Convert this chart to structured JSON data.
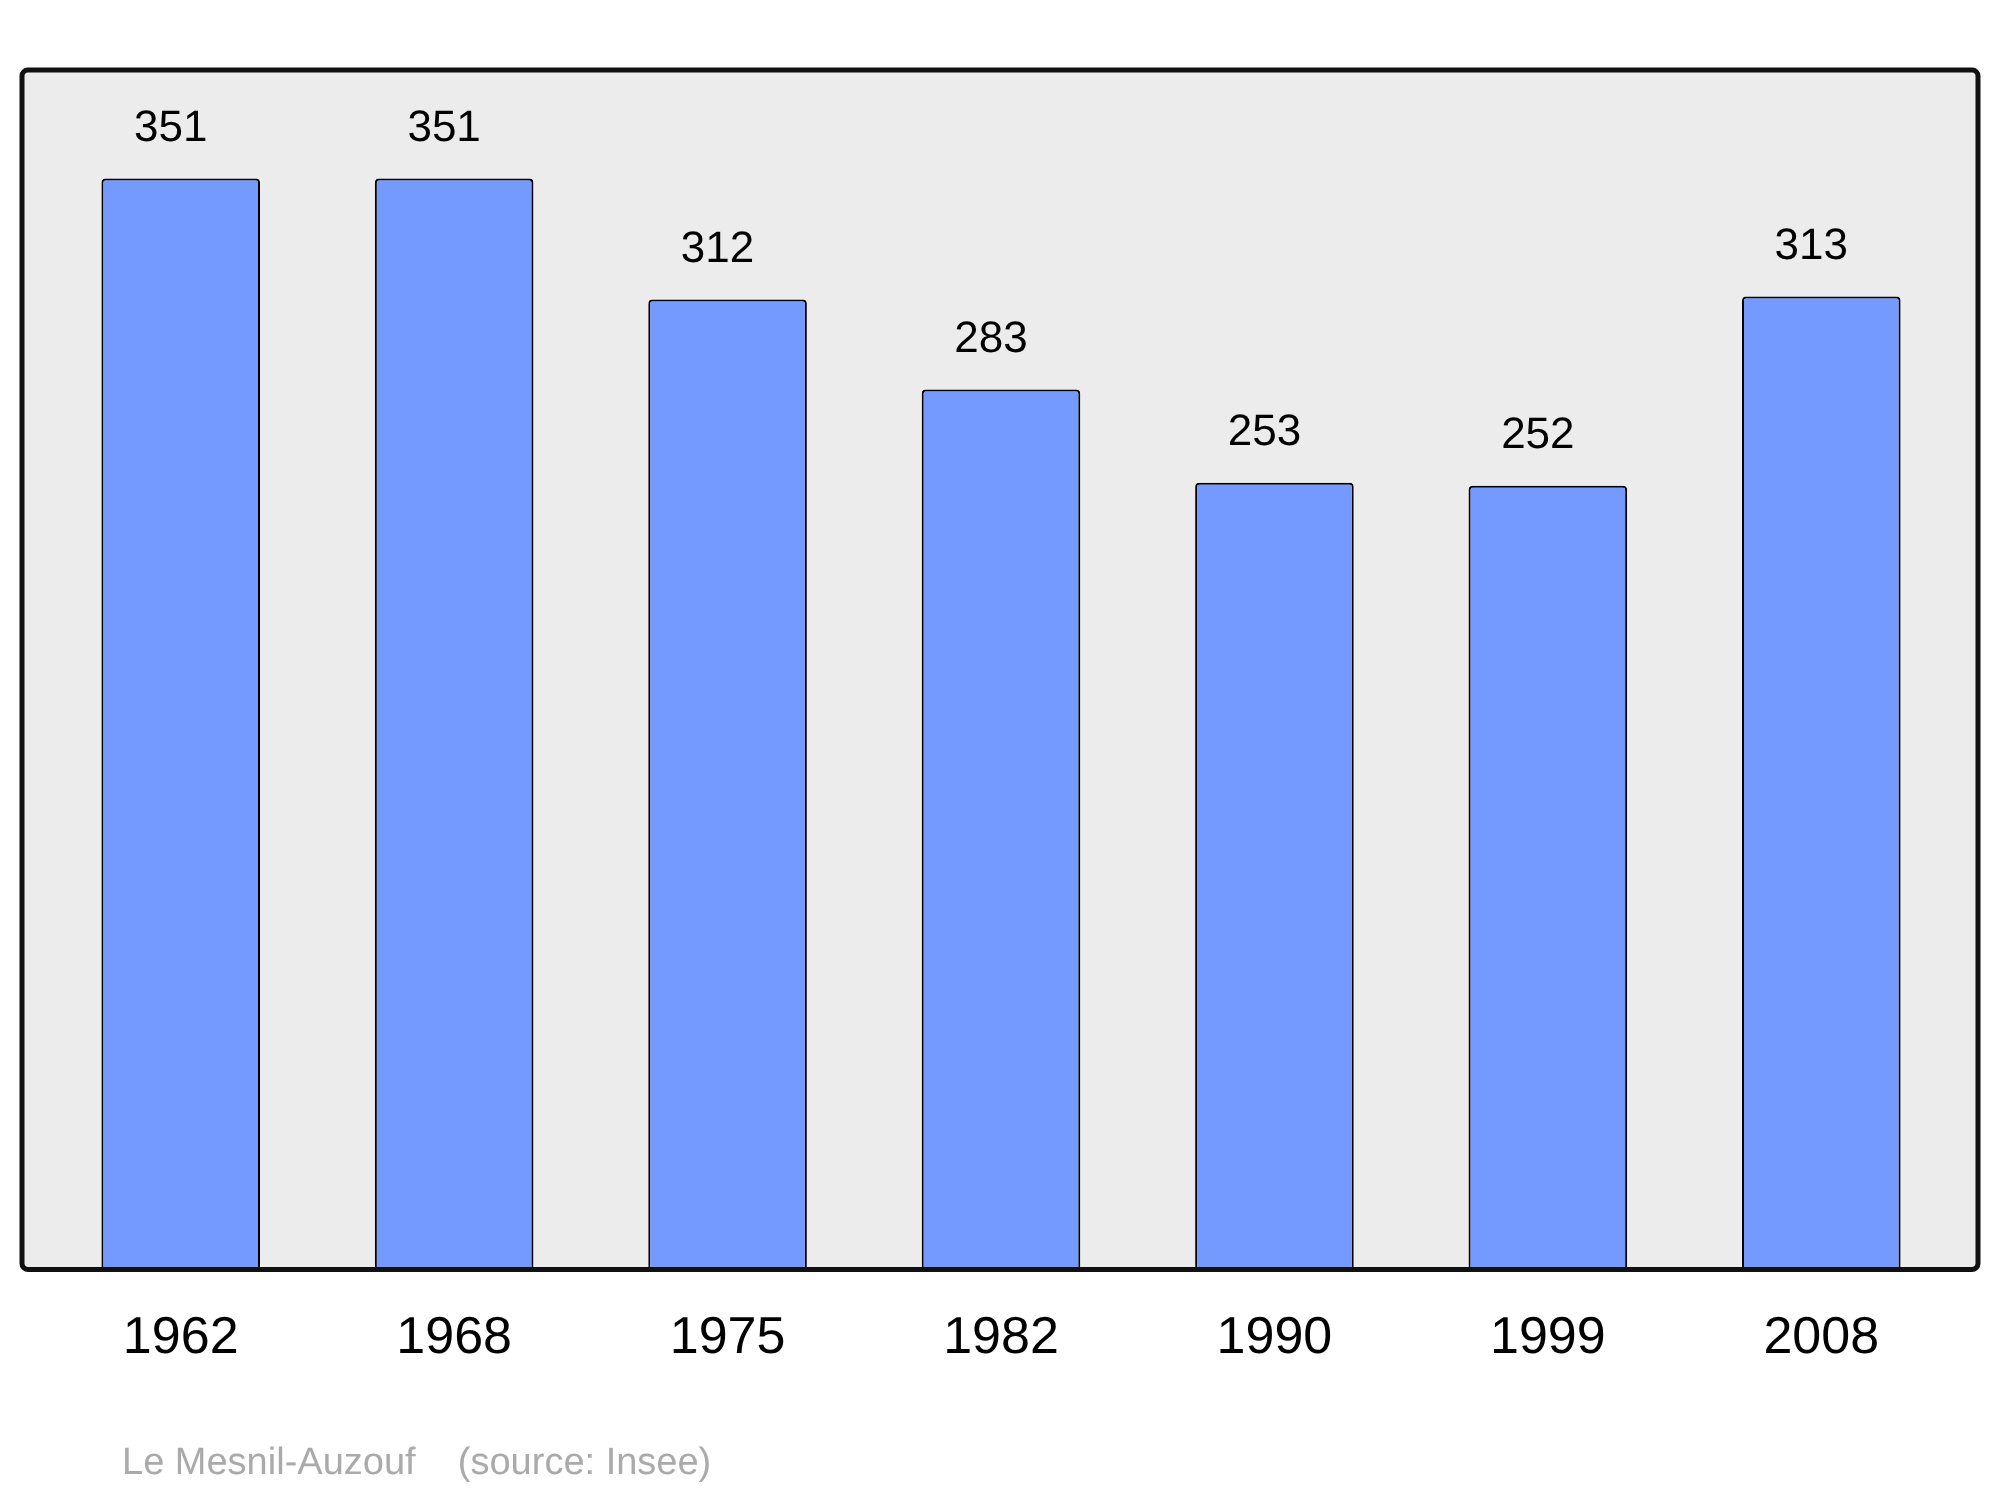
{
  "chart_data": {
    "type": "bar",
    "categories": [
      "1962",
      "1968",
      "1975",
      "1982",
      "1990",
      "1999",
      "2008"
    ],
    "values": [
      351,
      351,
      312,
      283,
      253,
      252,
      313
    ],
    "color": "#7499ff",
    "ylim": [
      0,
      386
    ],
    "tick_labels": "x",
    "grid": false,
    "legend": false,
    "data_labels": true,
    "annotations": [
      "Le Mesnil-Auzouf    (source: Insee)"
    ]
  }
}
